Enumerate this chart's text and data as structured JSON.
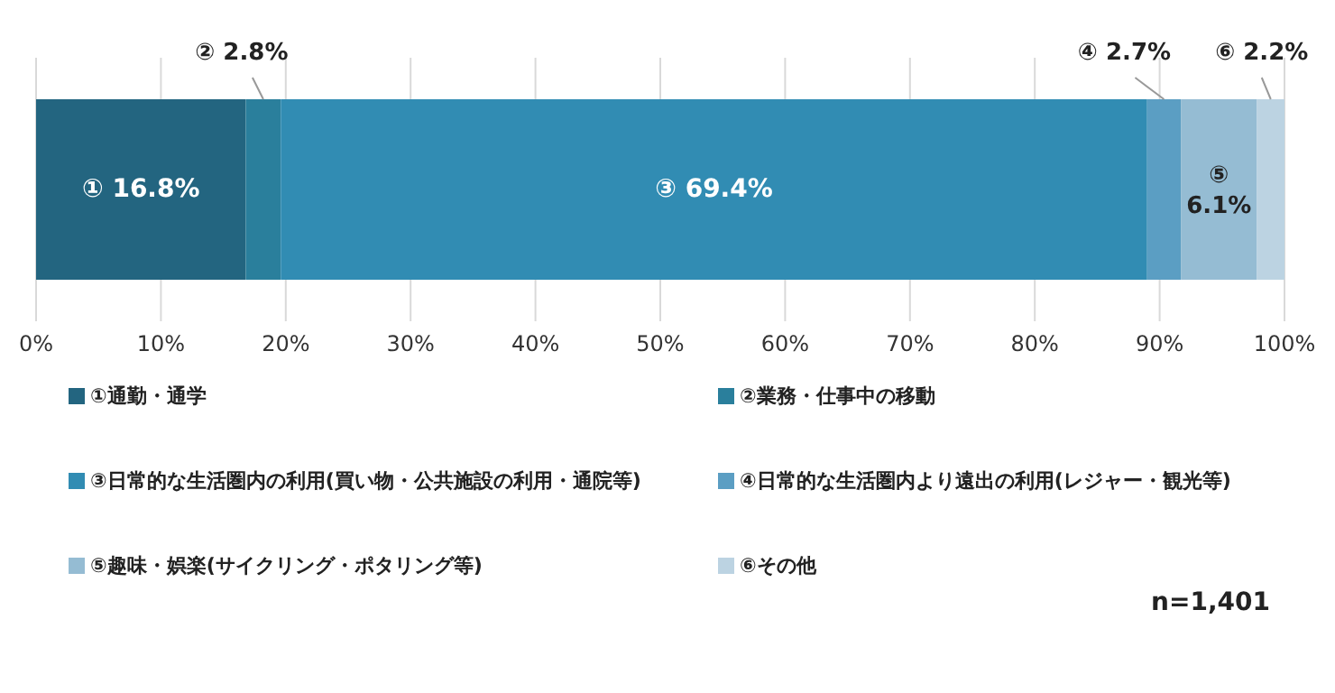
{
  "chart_data": {
    "type": "bar",
    "orientation": "horizontal",
    "stacked": true,
    "categories": [
      null
    ],
    "series": [
      {
        "name": "①通勤・通学",
        "color": "#236580",
        "values": [
          16.8
        ],
        "value_labels": [
          "① 16.8%"
        ]
      },
      {
        "name": "②業務・仕事中の移動",
        "color": "#2a7f9c",
        "values": [
          2.8
        ],
        "value_labels": [
          "② 2.8%"
        ]
      },
      {
        "name": "③日常的な生活圏内の利用(買い物・公共施設の利用・通院等)",
        "color": "#318cb3",
        "values": [
          69.4
        ],
        "value_labels": [
          "③ 69.4%"
        ]
      },
      {
        "name": "④日常的な生活圏内より遠出の利用(レジャー・観光等)",
        "color": "#5b9ec3",
        "values": [
          2.7
        ],
        "value_labels": [
          "④ 2.7%"
        ]
      },
      {
        "name": "⑤趣味・娯楽(サイクリング・ポタリング等)",
        "color": "#95bcd3",
        "values": [
          6.1
        ],
        "value_labels": [
          "⑤ 6.1%"
        ]
      },
      {
        "name": "⑥その他",
        "color": "#bcd3e2",
        "values": [
          2.2
        ],
        "value_labels": [
          "⑥ 2.2%"
        ]
      }
    ],
    "xlim": [
      0,
      100
    ],
    "xticks": [
      {
        "value": 0,
        "label": "0%"
      },
      {
        "value": 10,
        "label": "10%"
      },
      {
        "value": 20,
        "label": "20%"
      },
      {
        "value": 30,
        "label": "30%"
      },
      {
        "value": 40,
        "label": "40%"
      },
      {
        "value": 50,
        "label": "50%"
      },
      {
        "value": 60,
        "label": "60%"
      },
      {
        "value": 70,
        "label": "70%"
      },
      {
        "value": 80,
        "label": "80%"
      },
      {
        "value": 90,
        "label": "90%"
      },
      {
        "value": 100,
        "label": "100%"
      }
    ],
    "grid": "x",
    "legend": "bottom",
    "annotations": [
      "n=1,401"
    ]
  }
}
